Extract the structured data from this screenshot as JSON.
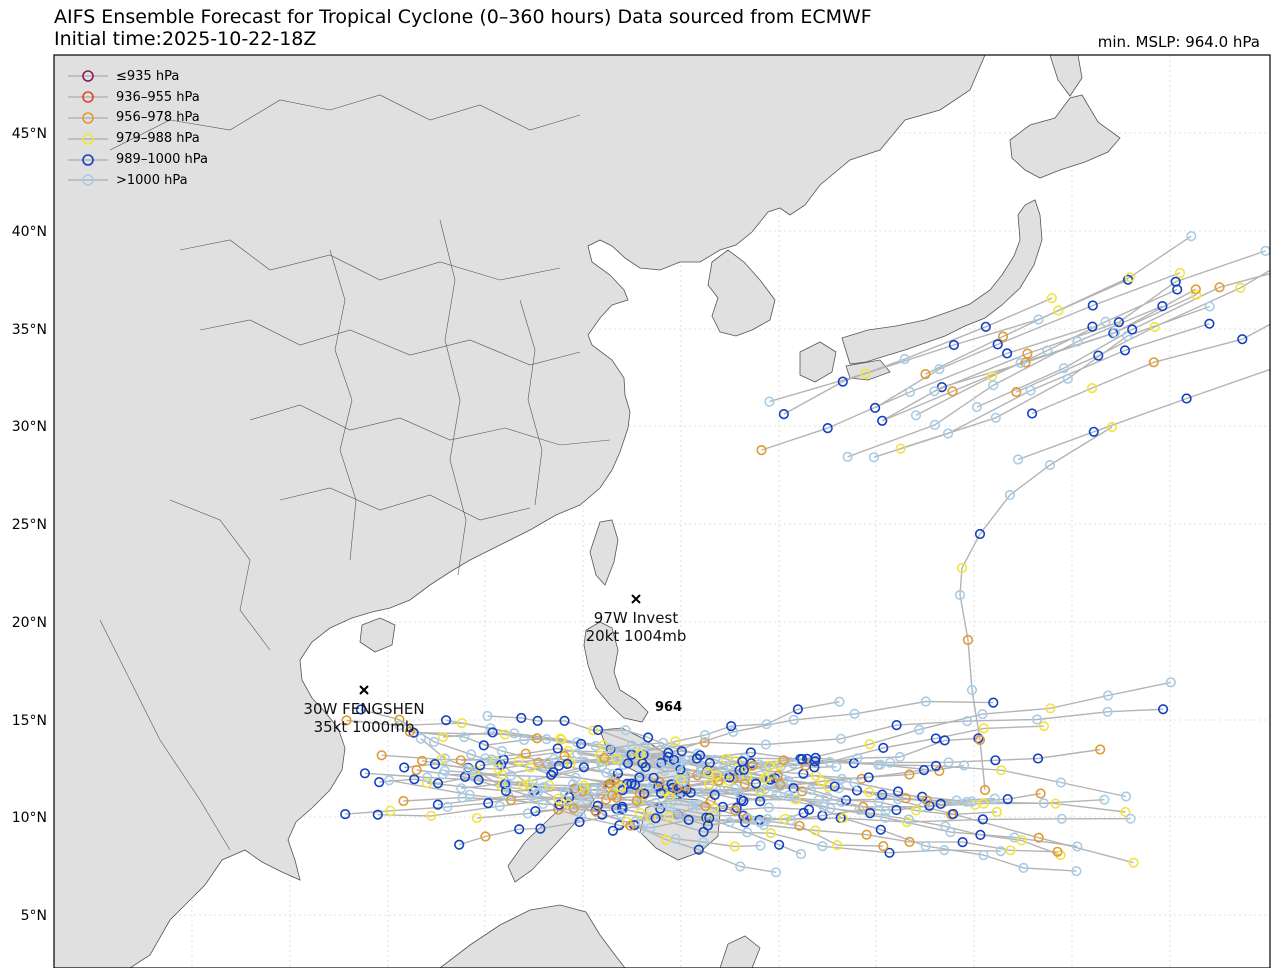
{
  "header": {
    "title_line1": "AIFS Ensemble Forecast for Tropical Cyclone (0–360 hours) Data sourced from ECMWF",
    "title_line2": "Initial time:2025-10-22-18Z",
    "min_mslp": "min. MSLP: 964.0 hPa"
  },
  "legend": [
    {
      "label": "≤935 hPa",
      "color": "#8b1a5a"
    },
    {
      "label": "936–955 hPa",
      "color": "#e0452a"
    },
    {
      "label": "956–978 hPa",
      "color": "#e39a2f"
    },
    {
      "label": "979–988 hPa",
      "color": "#f2e43c"
    },
    {
      "label": "989–1000 hPa",
      "color": "#1140c4"
    },
    {
      "label": ">1000 hPa",
      "color": "#a7cce8"
    }
  ],
  "lat_labels": [
    "45°N",
    "40°N",
    "35°N",
    "30°N",
    "25°N",
    "20°N",
    "15°N",
    "10°N",
    "5°N"
  ],
  "storms": [
    {
      "name": "97W Invest",
      "info": "20kt 1004mb"
    },
    {
      "name": "30W FENGSHEN",
      "info": "35kt 1000mb"
    }
  ],
  "min_marker": "964",
  "colors": {
    "land": "#e0e0e0",
    "ocean": "#ffffff",
    "track": "#b4b4b4",
    "grid": "#d8d8d8"
  }
}
